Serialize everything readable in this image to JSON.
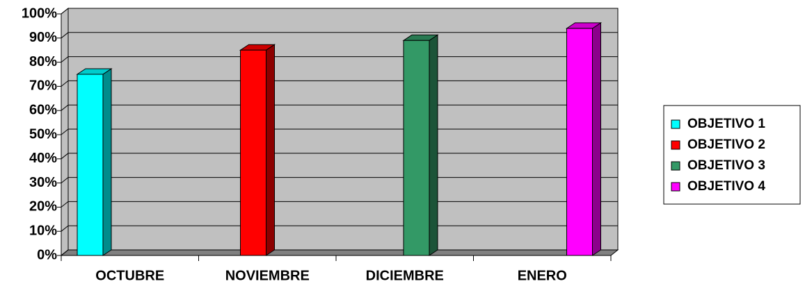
{
  "chart_data": {
    "type": "bar3d",
    "categories": [
      "OCTUBRE",
      "NOVIEMBRE",
      "DICIEMBRE",
      "ENERO"
    ],
    "series": [
      {
        "name": "OBJETIVO 1",
        "color": "#00ffff",
        "values": [
          75,
          null,
          null,
          null
        ]
      },
      {
        "name": "OBJETIVO 2",
        "color": "#ff0000",
        "values": [
          null,
          85,
          null,
          null
        ]
      },
      {
        "name": "OBJETIVO 3",
        "color": "#339966",
        "values": [
          null,
          null,
          89,
          null
        ]
      },
      {
        "name": "OBJETIVO 4",
        "color": "#ff00ff",
        "values": [
          null,
          null,
          null,
          94
        ]
      }
    ],
    "ylim": [
      0,
      100
    ],
    "yticks": [
      {
        "value": 0,
        "label": "0%"
      },
      {
        "value": 10,
        "label": "10%"
      },
      {
        "value": 20,
        "label": "20%"
      },
      {
        "value": 30,
        "label": "30%"
      },
      {
        "value": 40,
        "label": "40%"
      },
      {
        "value": 50,
        "label": "50%"
      },
      {
        "value": 60,
        "label": "60%"
      },
      {
        "value": 70,
        "label": "70%"
      },
      {
        "value": 80,
        "label": "80%"
      },
      {
        "value": 90,
        "label": "90%"
      },
      {
        "value": 100,
        "label": "100%"
      }
    ],
    "grid": true,
    "legend": "right"
  }
}
